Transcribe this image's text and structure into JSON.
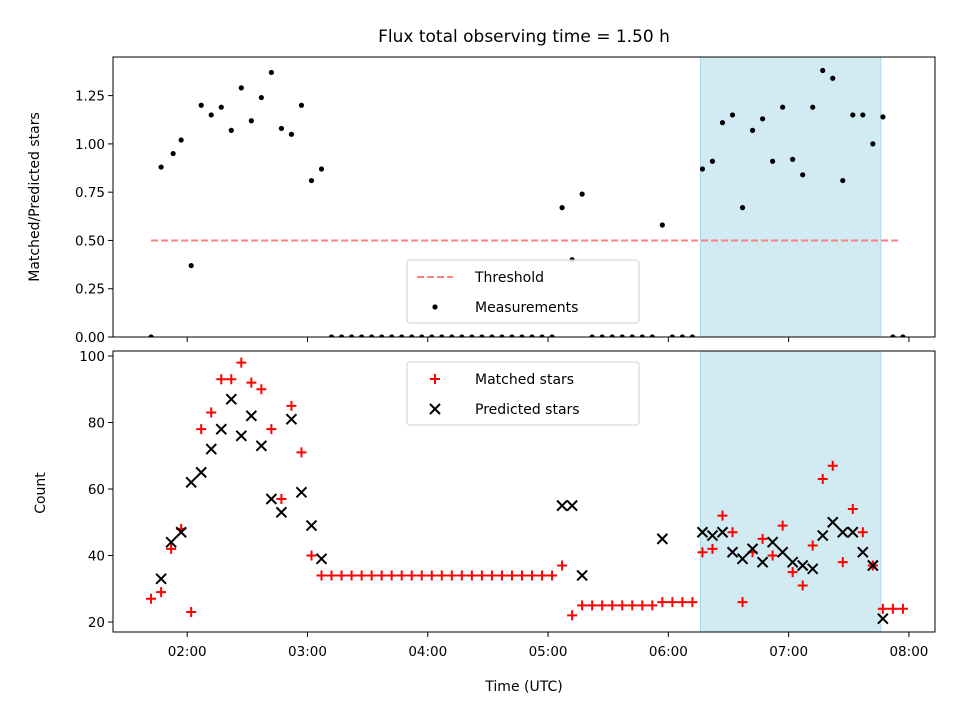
{
  "chart_data": {
    "title": "Flux total observing time = 1.50 h",
    "xlabel": "Time (UTC)",
    "x_ticks": [
      "02:00",
      "03:00",
      "04:00",
      "05:00",
      "06:00",
      "07:00",
      "08:00"
    ],
    "x_range": [
      "01:23",
      "08:13"
    ],
    "shaded_interval": {
      "start": "06:16",
      "end": "07:46",
      "color": "#add8e6"
    },
    "panels": [
      {
        "type": "scatter",
        "ylabel": "Matched/Predicted stars",
        "ylim": [
          0,
          1.45
        ],
        "y_ticks": [
          "0.00",
          "0.25",
          "0.50",
          "0.75",
          "1.00",
          "1.25"
        ],
        "legend_position": "lower center",
        "series": [
          {
            "name": "Threshold",
            "kind": "line",
            "style": "dashed",
            "color": "#ff7f7f",
            "x": [
              "01:42",
              "07:56"
            ],
            "y": [
              0.5,
              0.5
            ]
          },
          {
            "name": "Measurements",
            "kind": "dots",
            "color": "#000000",
            "points": [
              [
                "01:42",
                0
              ],
              [
                "01:47",
                0.88
              ],
              [
                "01:53",
                0.95
              ],
              [
                "01:57",
                1.02
              ],
              [
                "02:02",
                0.37
              ],
              [
                "02:07",
                1.2
              ],
              [
                "02:12",
                1.15
              ],
              [
                "02:17",
                1.19
              ],
              [
                "02:22",
                1.07
              ],
              [
                "02:27",
                1.29
              ],
              [
                "02:32",
                1.12
              ],
              [
                "02:37",
                1.24
              ],
              [
                "02:42",
                1.37
              ],
              [
                "02:47",
                1.08
              ],
              [
                "02:52",
                1.05
              ],
              [
                "02:57",
                1.2
              ],
              [
                "03:02",
                0.81
              ],
              [
                "03:07",
                0.87
              ],
              [
                "03:12",
                0
              ],
              [
                "03:17",
                0
              ],
              [
                "03:22",
                0
              ],
              [
                "03:27",
                0
              ],
              [
                "03:32",
                0
              ],
              [
                "03:37",
                0
              ],
              [
                "03:42",
                0
              ],
              [
                "03:47",
                0
              ],
              [
                "03:52",
                0
              ],
              [
                "03:57",
                0
              ],
              [
                "04:02",
                0
              ],
              [
                "04:07",
                0
              ],
              [
                "04:12",
                0
              ],
              [
                "04:17",
                0
              ],
              [
                "04:22",
                0
              ],
              [
                "04:27",
                0
              ],
              [
                "04:32",
                0
              ],
              [
                "04:37",
                0
              ],
              [
                "04:42",
                0
              ],
              [
                "04:47",
                0
              ],
              [
                "04:52",
                0
              ],
              [
                "04:57",
                0
              ],
              [
                "05:02",
                0
              ],
              [
                "05:07",
                0.67
              ],
              [
                "05:12",
                0.4
              ],
              [
                "05:17",
                0.74
              ],
              [
                "05:22",
                0
              ],
              [
                "05:27",
                0
              ],
              [
                "05:32",
                0
              ],
              [
                "05:37",
                0
              ],
              [
                "05:42",
                0
              ],
              [
                "05:47",
                0
              ],
              [
                "05:52",
                0
              ],
              [
                "05:57",
                0.58
              ],
              [
                "06:02",
                0
              ],
              [
                "06:07",
                0
              ],
              [
                "06:12",
                0
              ],
              [
                "06:17",
                0.87
              ],
              [
                "06:22",
                0.91
              ],
              [
                "06:27",
                1.11
              ],
              [
                "06:32",
                1.15
              ],
              [
                "06:37",
                0.67
              ],
              [
                "06:42",
                1.07
              ],
              [
                "06:47",
                1.13
              ],
              [
                "06:52",
                0.91
              ],
              [
                "06:57",
                1.19
              ],
              [
                "07:02",
                0.92
              ],
              [
                "07:07",
                0.84
              ],
              [
                "07:12",
                1.19
              ],
              [
                "07:17",
                1.38
              ],
              [
                "07:22",
                1.34
              ],
              [
                "07:27",
                0.81
              ],
              [
                "07:32",
                1.15
              ],
              [
                "07:37",
                1.15
              ],
              [
                "07:42",
                1.0
              ],
              [
                "07:47",
                1.14
              ],
              [
                "07:52",
                0
              ],
              [
                "07:57",
                0
              ]
            ]
          }
        ]
      },
      {
        "type": "scatter",
        "ylabel": "Count",
        "ylim": [
          17,
          101.5
        ],
        "y_ticks": [
          "20",
          "40",
          "60",
          "80",
          "100"
        ],
        "legend_position": "upper center",
        "series": [
          {
            "name": "Matched stars",
            "marker": "+",
            "color": "#ff0000",
            "points": [
              [
                "01:42",
                27
              ],
              [
                "01:47",
                29
              ],
              [
                "01:52",
                42
              ],
              [
                "01:57",
                48
              ],
              [
                "02:02",
                23
              ],
              [
                "02:07",
                78
              ],
              [
                "02:12",
                83
              ],
              [
                "02:17",
                93
              ],
              [
                "02:22",
                93
              ],
              [
                "02:27",
                98
              ],
              [
                "02:32",
                92
              ],
              [
                "02:37",
                90
              ],
              [
                "02:42",
                78
              ],
              [
                "02:47",
                57
              ],
              [
                "02:52",
                85
              ],
              [
                "02:57",
                71
              ],
              [
                "03:02",
                40
              ],
              [
                "03:07",
                34
              ],
              [
                "03:12",
                34
              ],
              [
                "03:17",
                34
              ],
              [
                "03:22",
                34
              ],
              [
                "03:27",
                34
              ],
              [
                "03:32",
                34
              ],
              [
                "03:37",
                34
              ],
              [
                "03:42",
                34
              ],
              [
                "03:47",
                34
              ],
              [
                "03:52",
                34
              ],
              [
                "03:57",
                34
              ],
              [
                "04:02",
                34
              ],
              [
                "04:07",
                34
              ],
              [
                "04:12",
                34
              ],
              [
                "04:17",
                34
              ],
              [
                "04:22",
                34
              ],
              [
                "04:27",
                34
              ],
              [
                "04:32",
                34
              ],
              [
                "04:37",
                34
              ],
              [
                "04:42",
                34
              ],
              [
                "04:47",
                34
              ],
              [
                "04:52",
                34
              ],
              [
                "04:57",
                34
              ],
              [
                "05:02",
                34
              ],
              [
                "05:07",
                37
              ],
              [
                "05:12",
                22
              ],
              [
                "05:17",
                25
              ],
              [
                "05:22",
                25
              ],
              [
                "05:27",
                25
              ],
              [
                "05:32",
                25
              ],
              [
                "05:37",
                25
              ],
              [
                "05:42",
                25
              ],
              [
                "05:47",
                25
              ],
              [
                "05:52",
                25
              ],
              [
                "05:57",
                26
              ],
              [
                "06:02",
                26
              ],
              [
                "06:07",
                26
              ],
              [
                "06:12",
                26
              ],
              [
                "06:17",
                41
              ],
              [
                "06:22",
                42
              ],
              [
                "06:27",
                52
              ],
              [
                "06:32",
                47
              ],
              [
                "06:37",
                26
              ],
              [
                "06:42",
                41
              ],
              [
                "06:47",
                45
              ],
              [
                "06:52",
                40
              ],
              [
                "06:57",
                49
              ],
              [
                "07:02",
                35
              ],
              [
                "07:07",
                31
              ],
              [
                "07:12",
                43
              ],
              [
                "07:17",
                63
              ],
              [
                "07:22",
                67
              ],
              [
                "07:27",
                38
              ],
              [
                "07:32",
                54
              ],
              [
                "07:37",
                47
              ],
              [
                "07:42",
                37
              ],
              [
                "07:47",
                24
              ],
              [
                "07:52",
                24
              ],
              [
                "07:57",
                24
              ]
            ]
          },
          {
            "name": "Predicted stars",
            "marker": "x",
            "color": "#000000",
            "points": [
              [
                "01:47",
                33
              ],
              [
                "01:52",
                44
              ],
              [
                "01:57",
                47
              ],
              [
                "02:02",
                62
              ],
              [
                "02:07",
                65
              ],
              [
                "02:12",
                72
              ],
              [
                "02:17",
                78
              ],
              [
                "02:22",
                87
              ],
              [
                "02:27",
                76
              ],
              [
                "02:32",
                82
              ],
              [
                "02:37",
                73
              ],
              [
                "02:42",
                57
              ],
              [
                "02:47",
                53
              ],
              [
                "02:52",
                81
              ],
              [
                "02:57",
                59
              ],
              [
                "03:02",
                49
              ],
              [
                "03:07",
                39
              ],
              [
                "05:07",
                55
              ],
              [
                "05:12",
                55
              ],
              [
                "05:17",
                34
              ],
              [
                "05:57",
                45
              ],
              [
                "06:17",
                47
              ],
              [
                "06:22",
                46
              ],
              [
                "06:27",
                47
              ],
              [
                "06:32",
                41
              ],
              [
                "06:37",
                39
              ],
              [
                "06:42",
                42
              ],
              [
                "06:47",
                38
              ],
              [
                "06:52",
                44
              ],
              [
                "06:57",
                41
              ],
              [
                "07:02",
                38
              ],
              [
                "07:07",
                37
              ],
              [
                "07:12",
                36
              ],
              [
                "07:17",
                46
              ],
              [
                "07:22",
                50
              ],
              [
                "07:27",
                47
              ],
              [
                "07:32",
                47
              ],
              [
                "07:37",
                41
              ],
              [
                "07:42",
                37
              ],
              [
                "07:47",
                21
              ]
            ]
          }
        ]
      }
    ]
  }
}
